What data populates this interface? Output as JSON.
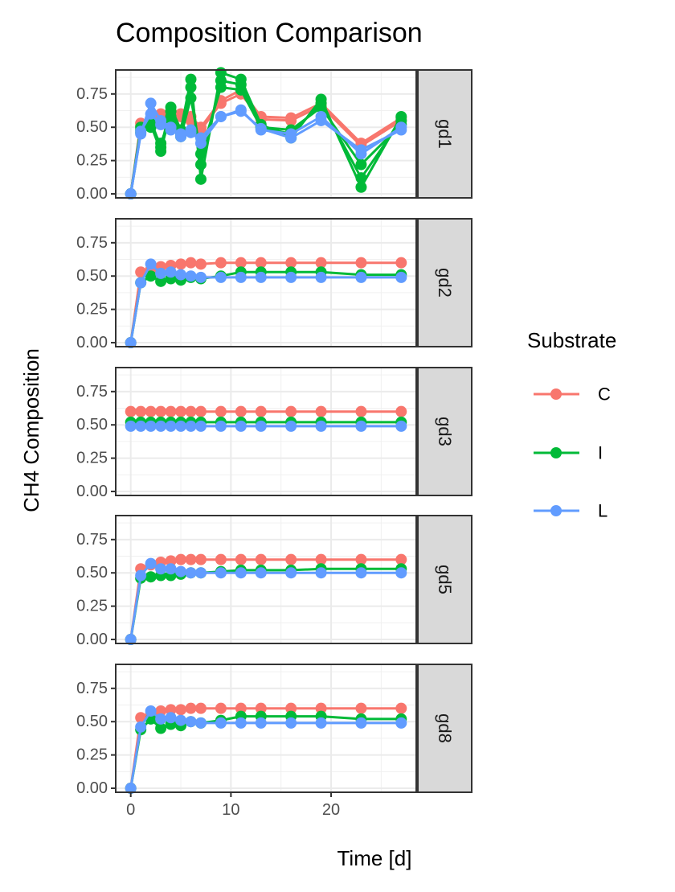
{
  "chart_data": {
    "type": "line",
    "title": "Composition Comparison",
    "xlabel": "Time [d]",
    "ylabel": "CH4 Composition",
    "xlim": [
      -1.5,
      28.5
    ],
    "ylim": [
      -0.03,
      0.93
    ],
    "x_ticks": [
      0,
      10,
      20
    ],
    "y_ticks": [
      "0.00",
      "0.25",
      "0.50",
      "0.75"
    ],
    "grid": true,
    "legend": {
      "title": "Substrate",
      "placement": "right",
      "entries": [
        {
          "name": "C",
          "color": "#F8766D"
        },
        {
          "name": "I",
          "color": "#00BA38"
        },
        {
          "name": "L",
          "color": "#619CFF"
        }
      ]
    },
    "x": [
      0,
      1,
      2,
      3,
      4,
      5,
      6,
      7,
      9,
      11,
      13,
      16,
      19,
      23,
      27
    ],
    "panels": [
      {
        "name": "gd1",
        "series": [
          {
            "name": "C",
            "lines": [
              [
                0,
                0.53,
                0.55,
                0.6,
                0.62,
                0.6,
                0.58,
                0.5,
                0.7,
                0.78,
                0.58,
                0.57,
                0.68,
                0.38,
                0.57
              ],
              [
                0,
                0.51,
                0.53,
                0.58,
                0.6,
                0.58,
                0.55,
                0.48,
                0.68,
                0.75,
                0.56,
                0.55,
                0.66,
                0.36,
                0.55
              ]
            ]
          },
          {
            "name": "I",
            "lines": [
              [
                0,
                0.5,
                0.55,
                0.35,
                0.65,
                0.48,
                0.86,
                0.11,
                0.91,
                0.86,
                0.52,
                0.42,
                0.71,
                0.05,
                0.58
              ],
              [
                0,
                0.48,
                0.52,
                0.32,
                0.62,
                0.45,
                0.8,
                0.22,
                0.85,
                0.82,
                0.5,
                0.45,
                0.68,
                0.12,
                0.55
              ],
              [
                0,
                0.46,
                0.5,
                0.38,
                0.58,
                0.43,
                0.72,
                0.3,
                0.8,
                0.78,
                0.5,
                0.48,
                0.65,
                0.22,
                0.52
              ]
            ]
          },
          {
            "name": "L",
            "lines": [
              [
                0,
                0.45,
                0.68,
                0.55,
                0.5,
                0.43,
                0.48,
                0.38,
                0.58,
                0.63,
                0.48,
                0.45,
                0.58,
                0.3,
                0.5
              ],
              [
                0,
                0.47,
                0.6,
                0.52,
                0.48,
                0.45,
                0.46,
                0.42,
                0.58,
                0.62,
                0.49,
                0.42,
                0.55,
                0.33,
                0.48
              ]
            ]
          }
        ]
      },
      {
        "name": "gd2",
        "series": [
          {
            "name": "C",
            "lines": [
              [
                0,
                0.53,
                0.55,
                0.57,
                0.58,
                0.59,
                0.6,
                0.59,
                0.6,
                0.6,
                0.6,
                0.6,
                0.6,
                0.6,
                0.6
              ]
            ]
          },
          {
            "name": "I",
            "lines": [
              [
                0,
                0.45,
                0.5,
                0.46,
                0.48,
                0.47,
                0.49,
                0.48,
                0.5,
                0.53,
                0.53,
                0.53,
                0.53,
                0.51,
                0.51
              ]
            ]
          },
          {
            "name": "L",
            "lines": [
              [
                0,
                0.45,
                0.59,
                0.52,
                0.53,
                0.51,
                0.5,
                0.49,
                0.49,
                0.49,
                0.49,
                0.49,
                0.49,
                0.49,
                0.49
              ]
            ]
          }
        ]
      },
      {
        "name": "gd3",
        "series": [
          {
            "name": "C",
            "lines": [
              [
                0.6,
                0.6,
                0.6,
                0.6,
                0.6,
                0.6,
                0.6,
                0.6,
                0.6,
                0.6,
                0.6,
                0.6,
                0.6,
                0.6,
                0.6
              ]
            ]
          },
          {
            "name": "I",
            "lines": [
              [
                0.52,
                0.52,
                0.52,
                0.52,
                0.52,
                0.52,
                0.52,
                0.52,
                0.52,
                0.52,
                0.52,
                0.52,
                0.52,
                0.52,
                0.52
              ]
            ]
          },
          {
            "name": "L",
            "lines": [
              [
                0.49,
                0.49,
                0.49,
                0.49,
                0.49,
                0.49,
                0.49,
                0.49,
                0.49,
                0.49,
                0.49,
                0.49,
                0.49,
                0.49,
                0.49
              ]
            ]
          }
        ]
      },
      {
        "name": "gd5",
        "series": [
          {
            "name": "C",
            "lines": [
              [
                0,
                0.53,
                0.56,
                0.58,
                0.59,
                0.6,
                0.6,
                0.6,
                0.6,
                0.6,
                0.6,
                0.6,
                0.6,
                0.6,
                0.6
              ]
            ]
          },
          {
            "name": "I",
            "lines": [
              [
                0,
                0.46,
                0.47,
                0.48,
                0.48,
                0.49,
                0.5,
                0.5,
                0.51,
                0.52,
                0.52,
                0.52,
                0.53,
                0.53,
                0.53
              ]
            ]
          },
          {
            "name": "L",
            "lines": [
              [
                0,
                0.48,
                0.57,
                0.53,
                0.53,
                0.51,
                0.5,
                0.5,
                0.5,
                0.5,
                0.5,
                0.5,
                0.5,
                0.5,
                0.5
              ]
            ]
          }
        ]
      },
      {
        "name": "gd8",
        "series": [
          {
            "name": "C",
            "lines": [
              [
                0,
                0.53,
                0.56,
                0.58,
                0.59,
                0.59,
                0.6,
                0.6,
                0.6,
                0.6,
                0.6,
                0.6,
                0.6,
                0.6,
                0.6
              ]
            ]
          },
          {
            "name": "I",
            "lines": [
              [
                0,
                0.44,
                0.52,
                0.45,
                0.48,
                0.47,
                0.5,
                0.49,
                0.51,
                0.54,
                0.54,
                0.54,
                0.54,
                0.52,
                0.52
              ]
            ]
          },
          {
            "name": "L",
            "lines": [
              [
                0,
                0.46,
                0.58,
                0.52,
                0.53,
                0.51,
                0.5,
                0.49,
                0.49,
                0.49,
                0.49,
                0.49,
                0.49,
                0.49,
                0.49
              ]
            ]
          }
        ]
      }
    ]
  }
}
